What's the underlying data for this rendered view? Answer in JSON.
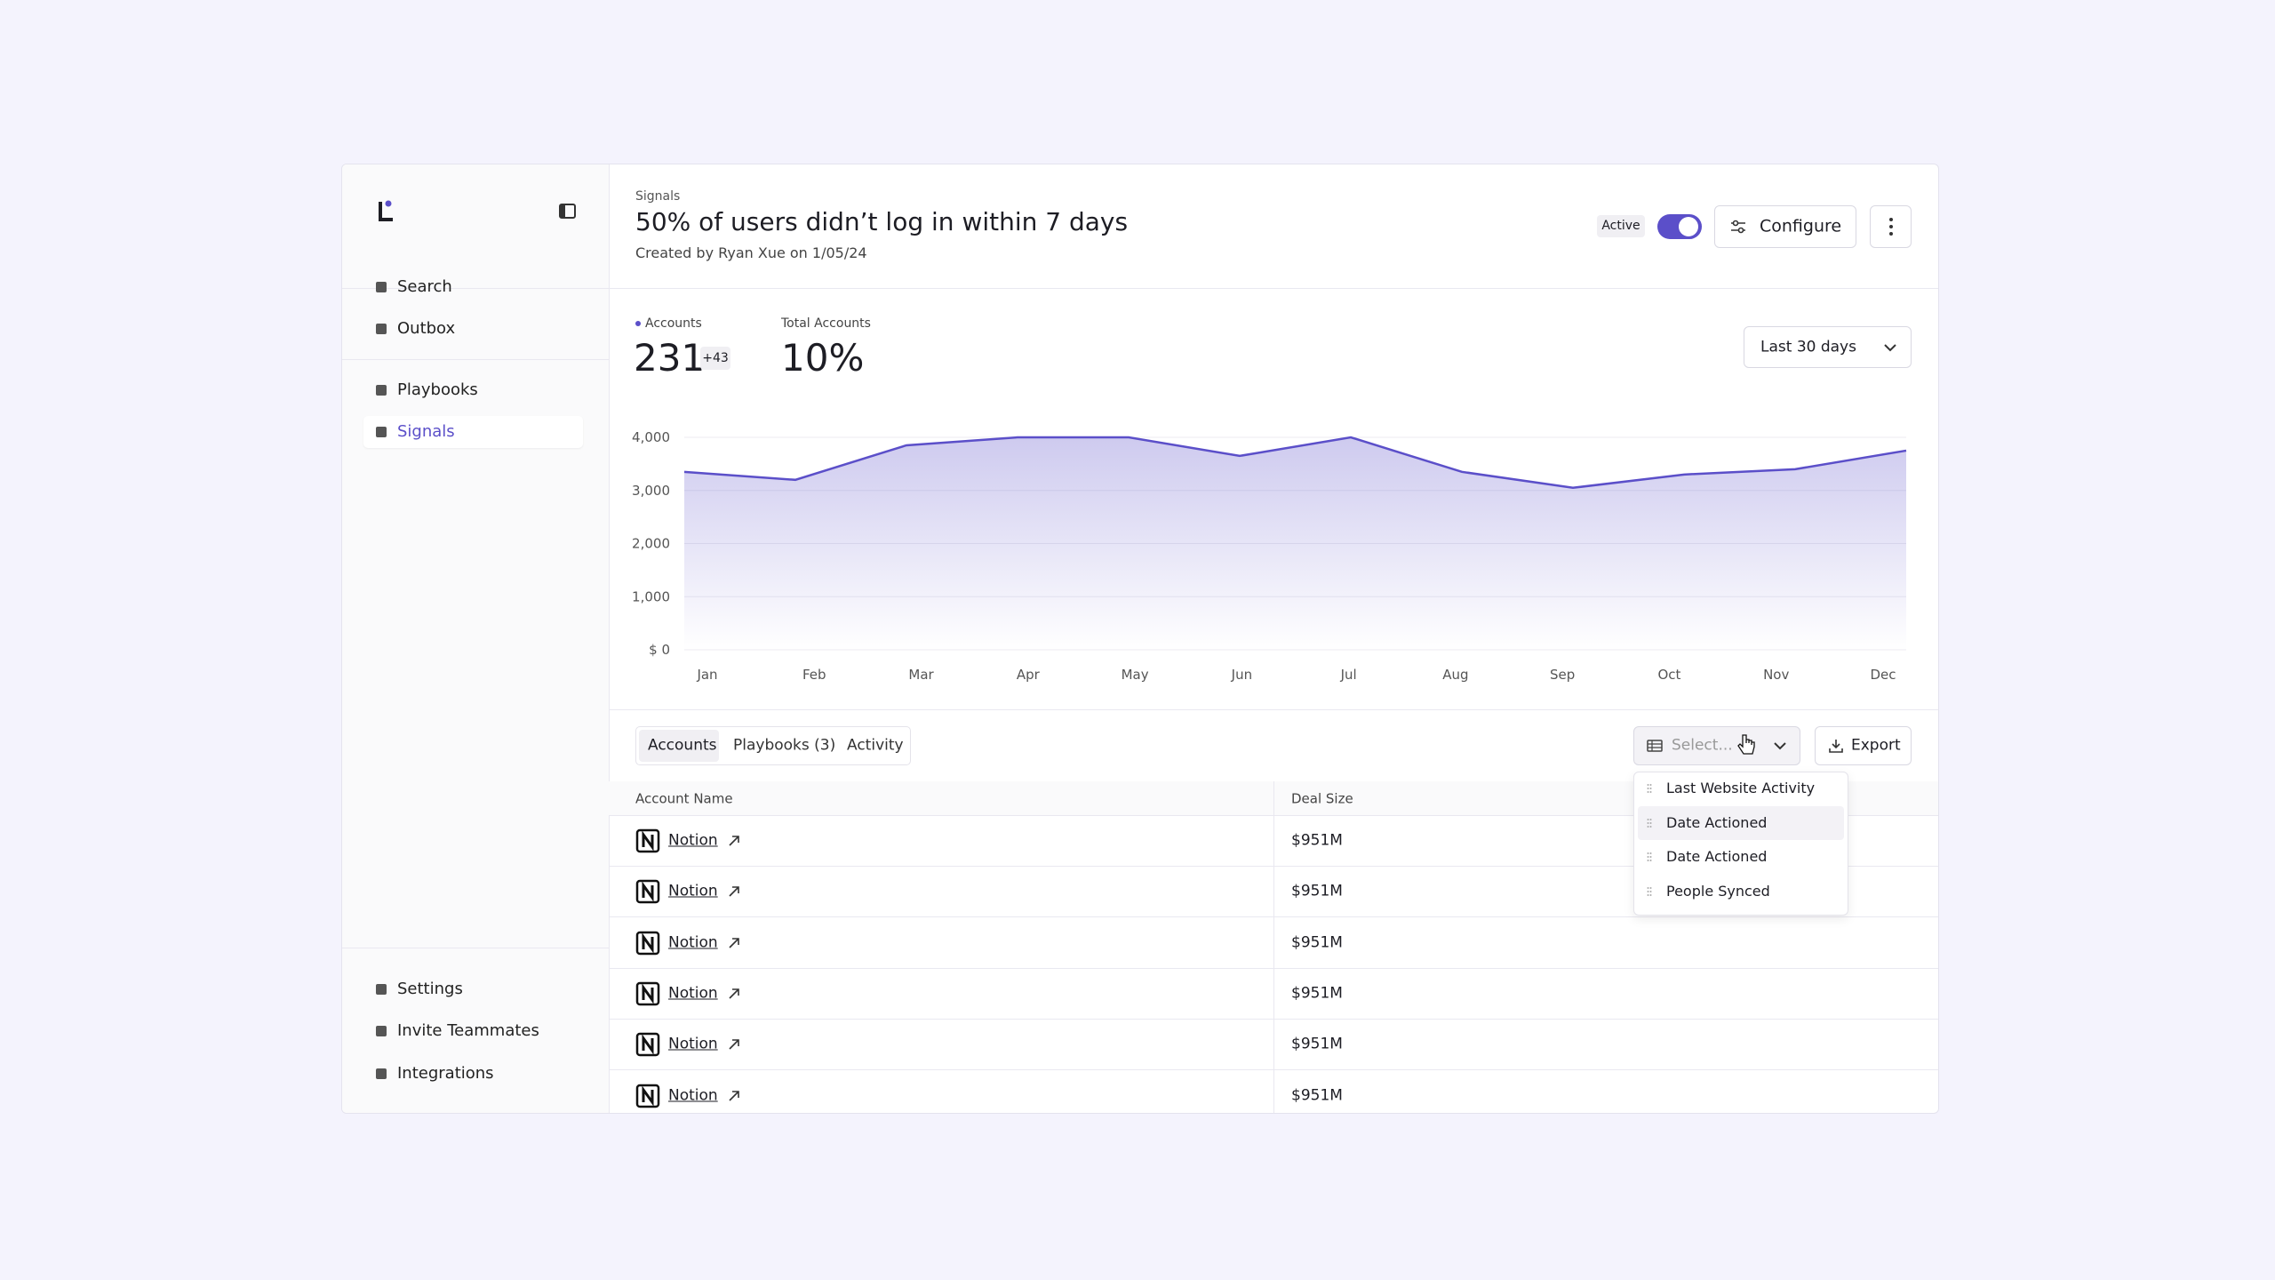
{
  "sidebar": {
    "nav_top": [
      "Search",
      "Outbox"
    ],
    "nav_mid": [
      "Playbooks",
      "Signals"
    ],
    "nav_bottom": [
      "Settings",
      "Invite Teammates",
      "Integrations"
    ]
  },
  "header": {
    "breadcrumb": "Signals",
    "title": "50% of users didn’t log in within 7 days",
    "subtitle": "Created by Ryan Xue on 1/05/24",
    "status": "Active",
    "configure": "Configure"
  },
  "stats": [
    {
      "label": "Accounts",
      "value": "231",
      "delta": "+43"
    },
    {
      "label": "Total Accounts",
      "value": "10%"
    }
  ],
  "range": "Last 30 days",
  "chart_data": {
    "type": "area",
    "color": "#5b4fc9",
    "grid": true,
    "categories": [
      "Jan",
      "Feb",
      "Mar",
      "Apr",
      "May",
      "Jun",
      "Jul",
      "Aug",
      "Sep",
      "Oct",
      "Nov",
      "Dec"
    ],
    "values": [
      3350,
      3200,
      3850,
      4000,
      4000,
      3650,
      4000,
      3350,
      3050,
      3300,
      3400,
      3750
    ],
    "ylim": [
      0,
      4000
    ],
    "yticks": [
      {
        "value": 0,
        "label": "$ 0"
      },
      {
        "value": 1000,
        "label": "1,000"
      },
      {
        "value": 2000,
        "label": "2,000"
      },
      {
        "value": 3000,
        "label": "3,000"
      },
      {
        "value": 4000,
        "label": "4,000"
      }
    ]
  },
  "tabs": [
    "Accounts",
    "Playbooks (3)",
    "Activity"
  ],
  "select": "Select...",
  "export": "Export",
  "table": {
    "columns": [
      "Account Name",
      "Deal Size"
    ],
    "rows": [
      [
        "Notion",
        "$951M"
      ],
      [
        "Notion",
        "$951M"
      ],
      [
        "Notion",
        "$951M"
      ],
      [
        "Notion",
        "$951M"
      ],
      [
        "Notion",
        "$951M"
      ],
      [
        "Notion",
        "$951M"
      ]
    ]
  },
  "dropdown": [
    "Last Website Activity",
    "Date Actioned",
    "Date Actioned",
    "People Synced"
  ]
}
